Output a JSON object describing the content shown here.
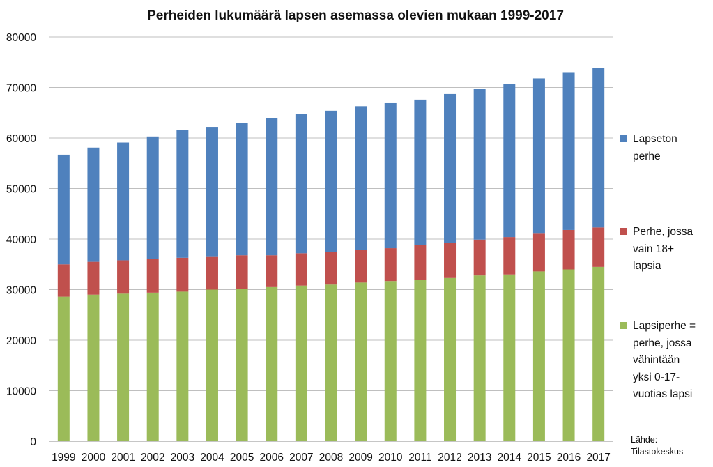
{
  "chart_data": {
    "type": "bar",
    "stacked": true,
    "title": "Perheiden lukumäärä lapsen asemassa olevien mukaan 1999-2017",
    "xlabel": "",
    "ylabel": "",
    "ylim": [
      0,
      80000
    ],
    "yticks": [
      0,
      10000,
      20000,
      30000,
      40000,
      50000,
      60000,
      70000,
      80000
    ],
    "grid": true,
    "legend_position": "right",
    "categories": [
      "1999",
      "2000",
      "2001",
      "2002",
      "2003",
      "2004",
      "2005",
      "2006",
      "2007",
      "2008",
      "2009",
      "2010",
      "2011",
      "2012",
      "2013",
      "2014",
      "2015",
      "2016",
      "2017"
    ],
    "series": [
      {
        "name": "Lapsiperhe = perhe, jossa vähintään yksi 0-17-vuotias lapsi",
        "color": "#9BBB59",
        "values": [
          28600,
          29000,
          29200,
          29400,
          29600,
          30000,
          30100,
          30500,
          30800,
          31000,
          31400,
          31700,
          31900,
          32300,
          32800,
          33000,
          33600,
          34000,
          34500
        ]
      },
      {
        "name": "Perhe, jossa vain 18+ lapsia",
        "color": "#C0504D",
        "values": [
          6400,
          6500,
          6600,
          6700,
          6700,
          6600,
          6700,
          6300,
          6400,
          6400,
          6400,
          6500,
          6900,
          7000,
          7100,
          7400,
          7600,
          7800,
          7800
        ]
      },
      {
        "name": "Lapseton perhe",
        "color": "#4F81BD",
        "values": [
          21700,
          22600,
          23300,
          24200,
          25300,
          25600,
          26200,
          27200,
          27500,
          28000,
          28500,
          28700,
          28800,
          29400,
          29800,
          30300,
          30600,
          31100,
          31600
        ]
      }
    ]
  },
  "legend": {
    "items": [
      {
        "lines": [
          "Lapseton",
          "perhe"
        ],
        "color": "#4F81BD"
      },
      {
        "lines": [
          "Perhe, jossa",
          "vain 18+",
          "lapsia"
        ],
        "color": "#C0504D"
      },
      {
        "lines": [
          "Lapsiperhe =",
          "perhe, jossa",
          "vähintään",
          "yksi 0-17-",
          "vuotias lapsi"
        ],
        "color": "#9BBB59"
      }
    ]
  },
  "source": {
    "line1": "Lähde:",
    "line2": "Tilastokeskus"
  }
}
